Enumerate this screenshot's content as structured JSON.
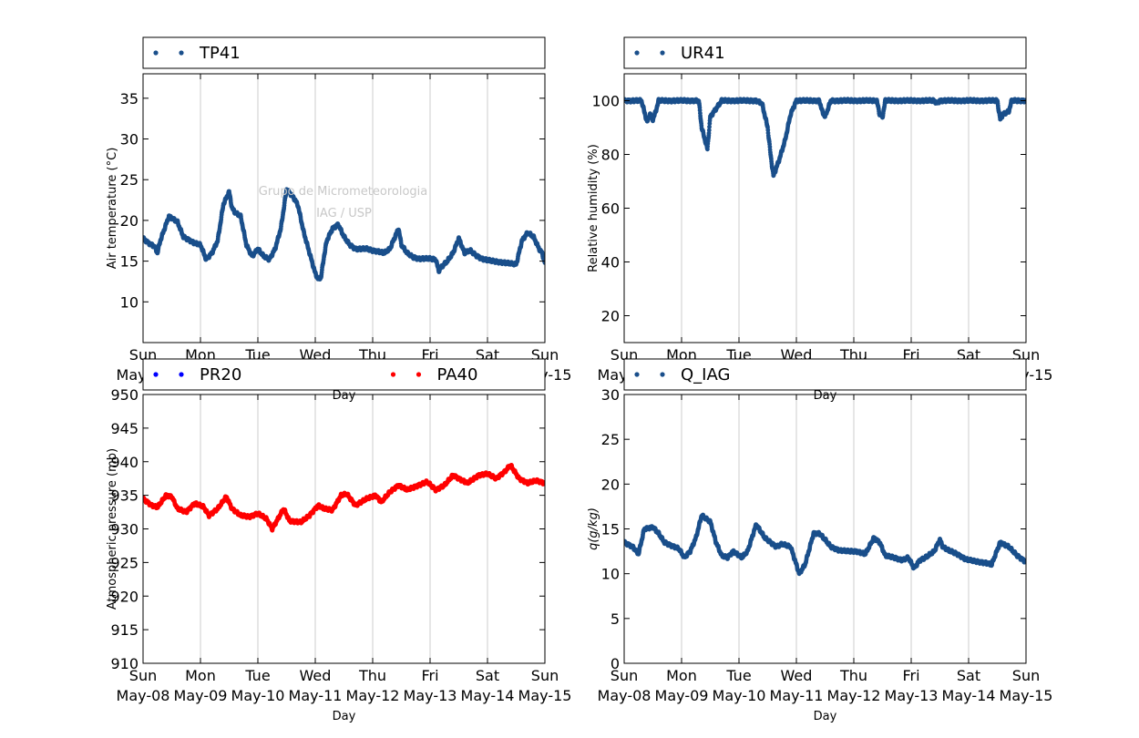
{
  "watermark": {
    "line1": "Grupo de Micrometeorologia",
    "line2": "IAG / USP"
  },
  "chart_data": [
    {
      "type": "scatter",
      "panel": "top-left",
      "xlabel": "Day",
      "ylabel": "Air temperature (°C)",
      "ylim": [
        5,
        38
      ],
      "yticks": [
        10,
        15,
        20,
        25,
        30,
        35
      ],
      "xlim": [
        0,
        7
      ],
      "xticks_day": [
        "Sun",
        "Mon",
        "Tue",
        "Wed",
        "Thu",
        "Fri",
        "Sat",
        "Sun"
      ],
      "xticks_date": [
        "May-08",
        "May-09",
        "May-10",
        "May-11",
        "May-12",
        "May-13",
        "May-14",
        "May-15"
      ],
      "grid": "vertical",
      "legend": "top, above plot",
      "series": [
        {
          "name": "TP41",
          "color": "#1a4f8b",
          "x": [
            0,
            0.1,
            0.2,
            0.25,
            0.3,
            0.4,
            0.45,
            0.5,
            0.6,
            0.7,
            0.8,
            0.9,
            1.0,
            1.1,
            1.15,
            1.2,
            1.3,
            1.4,
            1.5,
            1.55,
            1.6,
            1.7,
            1.8,
            1.9,
            2.0,
            2.1,
            2.2,
            2.3,
            2.4,
            2.5,
            2.6,
            2.65,
            2.7,
            2.8,
            2.9,
            3.0,
            3.05,
            3.1,
            3.15,
            3.2,
            3.3,
            3.4,
            3.5,
            3.6,
            3.7,
            3.8,
            3.9,
            4.0,
            4.1,
            4.2,
            4.3,
            4.45,
            4.5,
            4.6,
            4.7,
            4.8,
            4.9,
            5.0,
            5.1,
            5.15,
            5.2,
            5.3,
            5.4,
            5.5,
            5.6,
            5.7,
            5.8,
            5.9,
            6.0,
            6.1,
            6.2,
            6.3,
            6.4,
            6.5,
            6.6,
            6.7,
            6.8,
            6.9,
            6.95,
            7.0
          ],
          "y": [
            17.8,
            17.2,
            16.8,
            16.0,
            17.5,
            19.5,
            20.5,
            20.3,
            19.8,
            18.0,
            17.6,
            17.2,
            17.0,
            15.2,
            15.6,
            16.0,
            17.5,
            22.0,
            23.5,
            21.5,
            21.0,
            20.5,
            17.0,
            15.6,
            16.5,
            15.6,
            15.2,
            16.5,
            19.0,
            23.8,
            23.0,
            22.5,
            21.8,
            18.5,
            16.0,
            13.5,
            12.8,
            13.0,
            15.5,
            17.5,
            19.0,
            19.5,
            18.0,
            17.0,
            16.5,
            16.5,
            16.5,
            16.3,
            16.2,
            16.0,
            16.5,
            19.0,
            17.0,
            16.0,
            15.5,
            15.3,
            15.3,
            15.3,
            15.2,
            13.8,
            14.3,
            15.0,
            16.0,
            17.8,
            16.0,
            16.3,
            15.7,
            15.3,
            15.1,
            15.0,
            14.9,
            14.8,
            14.7,
            14.6,
            17.5,
            18.5,
            18.0,
            16.5,
            16.0,
            14.8
          ]
        }
      ]
    },
    {
      "type": "scatter",
      "panel": "top-right",
      "xlabel": "Day",
      "ylabel": "Relative humidity (%)",
      "ylim": [
        10,
        110
      ],
      "yticks": [
        20,
        40,
        60,
        80,
        100
      ],
      "xlim": [
        0,
        7
      ],
      "xticks_day": [
        "Sun",
        "Mon",
        "Tue",
        "Wed",
        "Thu",
        "Fri",
        "Sat",
        "Sun"
      ],
      "xticks_date": [
        "May-08",
        "May-09",
        "May-10",
        "May-11",
        "May-12",
        "May-13",
        "May-14",
        "May-15"
      ],
      "grid": "vertical",
      "legend": "top, above plot",
      "series": [
        {
          "name": "UR41",
          "color": "#1a4f8b",
          "x": [
            0,
            0.3,
            0.35,
            0.4,
            0.45,
            0.5,
            0.55,
            0.6,
            1.3,
            1.35,
            1.4,
            1.45,
            1.5,
            1.6,
            1.7,
            2.3,
            2.4,
            2.5,
            2.55,
            2.6,
            2.65,
            2.7,
            2.8,
            2.9,
            3.0,
            3.4,
            3.45,
            3.5,
            3.55,
            3.6,
            4.4,
            4.45,
            4.5,
            4.55,
            5.4,
            5.45,
            5.5,
            6.5,
            6.55,
            6.6,
            6.7,
            6.75,
            7.0
          ],
          "y": [
            100,
            100,
            96,
            92,
            95,
            93,
            96,
            100,
            100,
            90,
            86,
            82,
            94,
            97,
            100,
            100,
            99,
            90,
            80,
            72,
            75,
            78,
            85,
            95,
            100,
            100,
            96,
            94,
            97,
            100,
            100,
            95,
            94,
            100,
            100,
            99,
            100,
            100,
            93,
            95,
            96,
            100,
            100
          ]
        }
      ]
    },
    {
      "type": "scatter",
      "panel": "bottom-left",
      "xlabel": "Day",
      "ylabel": "Atmospheric pressure (mb)",
      "ylim": [
        910,
        950
      ],
      "yticks": [
        910,
        915,
        920,
        925,
        930,
        935,
        940,
        945,
        950
      ],
      "xlim": [
        0,
        7
      ],
      "xticks_day": [
        "Sun",
        "Mon",
        "Tue",
        "Wed",
        "Thu",
        "Fri",
        "Sat",
        "Sun"
      ],
      "xticks_date": [
        "May-08",
        "May-09",
        "May-10",
        "May-11",
        "May-12",
        "May-13",
        "May-14",
        "May-15"
      ],
      "grid": "vertical",
      "legend": "top, above plot",
      "series": [
        {
          "name": "PR20",
          "color": "#0000ff",
          "x": [],
          "y": []
        },
        {
          "name": "PA40",
          "color": "#ff0000",
          "x": [
            0,
            0.15,
            0.25,
            0.4,
            0.5,
            0.6,
            0.75,
            0.9,
            1.05,
            1.15,
            1.3,
            1.45,
            1.55,
            1.7,
            1.85,
            2.0,
            2.15,
            2.25,
            2.35,
            2.45,
            2.55,
            2.75,
            2.9,
            3.05,
            3.15,
            3.3,
            3.45,
            3.55,
            3.7,
            3.9,
            4.05,
            4.15,
            4.3,
            4.45,
            4.6,
            4.8,
            4.95,
            5.1,
            5.25,
            5.4,
            5.5,
            5.65,
            5.85,
            6.0,
            6.15,
            6.3,
            6.4,
            6.55,
            6.7,
            6.85,
            7.0
          ],
          "y": [
            934.5,
            933.5,
            933.2,
            935.0,
            934.8,
            933.0,
            932.5,
            933.8,
            933.3,
            932.0,
            933.0,
            934.8,
            933.0,
            932.0,
            931.8,
            932.3,
            931.5,
            930.0,
            931.5,
            933.0,
            931.2,
            931.0,
            932.0,
            933.5,
            933.0,
            932.8,
            935.0,
            935.2,
            933.5,
            934.5,
            935.0,
            934.0,
            935.5,
            936.5,
            935.8,
            936.5,
            937.0,
            935.8,
            936.5,
            938.0,
            937.5,
            936.8,
            938.0,
            938.2,
            937.5,
            938.5,
            939.5,
            937.5,
            936.8,
            937.2,
            936.8
          ]
        }
      ]
    },
    {
      "type": "scatter",
      "panel": "bottom-right",
      "xlabel": "Day",
      "ylabel": "q(g/kg)",
      "ylim": [
        0,
        30
      ],
      "yticks": [
        0,
        5,
        10,
        15,
        20,
        25,
        30
      ],
      "xlim": [
        0,
        7
      ],
      "xticks_day": [
        "Sun",
        "Mon",
        "Tue",
        "Wed",
        "Thu",
        "Fri",
        "Sat",
        "Sun"
      ],
      "xticks_date": [
        "May-08",
        "May-09",
        "May-10",
        "May-11",
        "May-12",
        "May-13",
        "May-14",
        "May-15"
      ],
      "grid": "vertical",
      "legend": "top, above plot",
      "series": [
        {
          "name": "Q_IAG",
          "color": "#1a4f8b",
          "x": [
            0,
            0.15,
            0.25,
            0.35,
            0.5,
            0.6,
            0.7,
            0.8,
            0.95,
            1.05,
            1.15,
            1.25,
            1.35,
            1.5,
            1.6,
            1.7,
            1.8,
            1.9,
            2.05,
            2.15,
            2.3,
            2.45,
            2.55,
            2.65,
            2.75,
            2.9,
            3.0,
            3.05,
            3.15,
            3.3,
            3.4,
            3.5,
            3.6,
            3.75,
            3.9,
            4.05,
            4.2,
            4.35,
            4.45,
            4.55,
            4.7,
            4.85,
            4.95,
            5.05,
            5.15,
            5.25,
            5.4,
            5.5,
            5.55,
            5.65,
            5.8,
            5.95,
            6.1,
            6.3,
            6.4,
            6.55,
            6.7,
            6.85,
            7.0
          ],
          "y": [
            13.5,
            13.0,
            12.2,
            15.0,
            15.2,
            14.5,
            13.5,
            13.2,
            12.8,
            11.8,
            12.5,
            14.0,
            16.5,
            15.8,
            13.5,
            12.0,
            11.8,
            12.5,
            11.8,
            12.5,
            15.5,
            14.0,
            13.5,
            13.0,
            13.3,
            13.0,
            11.0,
            10.0,
            11.0,
            14.5,
            14.5,
            13.8,
            13.0,
            12.6,
            12.5,
            12.5,
            12.2,
            14.0,
            13.5,
            12.0,
            11.8,
            11.5,
            11.8,
            10.6,
            11.5,
            11.8,
            12.5,
            13.8,
            13.0,
            12.6,
            12.2,
            11.6,
            11.4,
            11.2,
            11.0,
            13.5,
            13.0,
            12.0,
            11.3
          ]
        }
      ]
    }
  ]
}
